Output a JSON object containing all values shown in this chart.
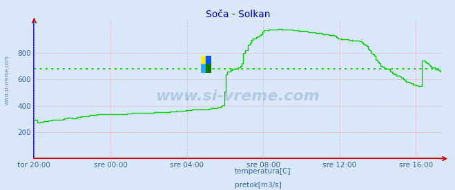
{
  "title": "Soča - Solkan",
  "title_color": "#0000cc",
  "bg_color": "#d8e8f8",
  "plot_bg_color": "#d8e8f8",
  "grid_color": "#ff9999",
  "line_color": "#00cc00",
  "line_width": 1.0,
  "avg_line_color": "#00cc00",
  "avg_line_value": 680,
  "ylim": [
    0,
    1050
  ],
  "yticks": [
    200,
    400,
    600,
    800
  ],
  "xtick_labels": [
    "tor 20:00",
    "sre 00:00",
    "sre 04:00",
    "sre 08:00",
    "sre 12:00",
    "sre 16:00"
  ],
  "xtick_hours": [
    0,
    4,
    8,
    12,
    16,
    20
  ],
  "total_hours": 21.33,
  "watermark": "www.si-vreme.com",
  "watermark_color": "#1a3a8a",
  "watermark_alpha": 0.18,
  "legend_labels": [
    "temperatura[C]",
    "pretok[m3/s]"
  ],
  "legend_colors": [
    "#cc0000",
    "#00cc00"
  ],
  "ylabel_color": "#336699",
  "xlabel_color": "#336699",
  "y_values": [
    295,
    295,
    275,
    275,
    280,
    280,
    285,
    285,
    285,
    290,
    290,
    295,
    295,
    295,
    295,
    295,
    295,
    295,
    300,
    305,
    305,
    310,
    310,
    310,
    305,
    305,
    310,
    315,
    315,
    320,
    320,
    320,
    320,
    320,
    325,
    330,
    330,
    330,
    330,
    335,
    335,
    335,
    335,
    335,
    335,
    335,
    335,
    335,
    335,
    335,
    335,
    335,
    335,
    335,
    335,
    335,
    335,
    335,
    340,
    340,
    340,
    345,
    345,
    345,
    345,
    345,
    345,
    345,
    345,
    345,
    345,
    345,
    345,
    345,
    345,
    350,
    350,
    350,
    350,
    350,
    350,
    350,
    350,
    350,
    350,
    355,
    355,
    355,
    355,
    360,
    360,
    360,
    360,
    360,
    360,
    365,
    365,
    365,
    365,
    370,
    370,
    370,
    370,
    375,
    375,
    370,
    370,
    375,
    375,
    380,
    380,
    385,
    385,
    385,
    385,
    390,
    390,
    400,
    405,
    510,
    640,
    660,
    660,
    670,
    680,
    680,
    680,
    680,
    690,
    700,
    720,
    800,
    820,
    820,
    860,
    880,
    900,
    910,
    910,
    920,
    925,
    935,
    940,
    960,
    970,
    970,
    970,
    975,
    975,
    975,
    975,
    975,
    975,
    980,
    980,
    975,
    975,
    975,
    975,
    975,
    975,
    975,
    970,
    970,
    970,
    970,
    965,
    965,
    965,
    965,
    965,
    960,
    955,
    955,
    955,
    955,
    950,
    950,
    950,
    950,
    945,
    940,
    940,
    940,
    940,
    935,
    935,
    935,
    930,
    920,
    910,
    910,
    905,
    905,
    905,
    905,
    905,
    900,
    900,
    895,
    895,
    895,
    895,
    895,
    890,
    880,
    870,
    860,
    850,
    830,
    820,
    800,
    790,
    780,
    750,
    730,
    720,
    700,
    695,
    685,
    680,
    680,
    680,
    660,
    650,
    640,
    640,
    630,
    630,
    620,
    610,
    600,
    590,
    580,
    580,
    575,
    570,
    560,
    560,
    555,
    550,
    550,
    550,
    740,
    740,
    730,
    720,
    710,
    700,
    690,
    690,
    680,
    675,
    670,
    660,
    700
  ]
}
